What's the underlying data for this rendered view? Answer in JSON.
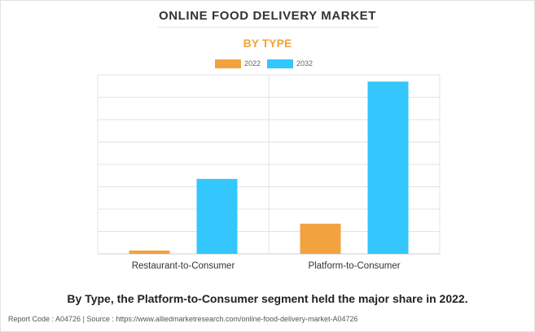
{
  "header": {
    "title": "ONLINE FOOD DELIVERY MARKET",
    "subtitle": "BY TYPE"
  },
  "caption": "By Type, the Platform-to-Consumer segment held the major share in 2022.",
  "footer": "Report Code : A04726  |  Source : https://www.alliedmarketresearch.com/online-food-delivery-market-A04726",
  "colors": {
    "series_2022": "#f2a340",
    "series_2032": "#33c7fd",
    "title": "#333333",
    "subtitle": "#f2a23a",
    "grid": "#e3e3e3"
  },
  "chart_data": {
    "type": "bar",
    "title": "ONLINE FOOD DELIVERY MARKET",
    "subtitle": "BY TYPE",
    "categories": [
      "Restaurant-to-Consumer",
      "Platform-to-Consumer"
    ],
    "series": [
      {
        "name": "2022",
        "values": [
          1.5,
          13.5
        ]
      },
      {
        "name": "2032",
        "values": [
          33.5,
          77
        ]
      }
    ],
    "ylim": [
      0,
      80
    ],
    "y_ticks_visible": false,
    "grid": true,
    "legend": "top-center",
    "xlabel": "",
    "ylabel": ""
  }
}
